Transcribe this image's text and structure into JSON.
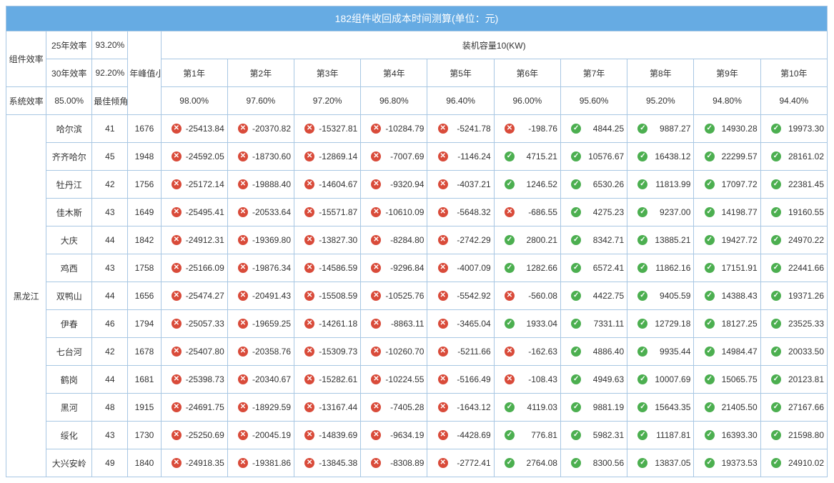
{
  "title": "182组件收回成本时间测算(单位：元)",
  "header": {
    "module_eff": "组件效率",
    "eff25_label": "25年效率",
    "eff25_val": "93.20%",
    "eff30_label": "30年效率",
    "eff30_val": "92.20%",
    "peak_hours_label": "年峰值小时数",
    "capacity_label": "装机容量10(KW)",
    "sys_eff_label": "系统效率",
    "sys_eff_val": "85.00%",
    "tilt_label": "最佳倾角",
    "years": [
      "第1年",
      "第2年",
      "第3年",
      "第4年",
      "第5年",
      "第6年",
      "第7年",
      "第8年",
      "第9年",
      "第10年"
    ],
    "year_pct": [
      "98.00%",
      "97.60%",
      "97.20%",
      "96.80%",
      "96.40%",
      "96.00%",
      "95.60%",
      "95.20%",
      "94.80%",
      "94.40%"
    ]
  },
  "region": "黑龙江",
  "col_widths": {
    "c0": 56,
    "c1": 64,
    "c2": 50,
    "c3": 46,
    "year_col": 93
  },
  "colors": {
    "title_bg": "#66abe3",
    "border": "#a8c7e3",
    "neg_icon": "#d94b3a",
    "pos_icon": "#4caf50"
  },
  "rows": [
    {
      "city": "哈尔滨",
      "tilt": 41,
      "hours": 1676,
      "vals": [
        -25413.84,
        -20370.82,
        -15327.81,
        -10284.79,
        -5241.78,
        -198.76,
        4844.25,
        9887.27,
        14930.28,
        19973.3
      ]
    },
    {
      "city": "齐齐哈尔",
      "tilt": 45,
      "hours": 1948,
      "vals": [
        -24592.05,
        -18730.6,
        -12869.14,
        -7007.69,
        -1146.24,
        4715.21,
        10576.67,
        16438.12,
        22299.57,
        28161.02
      ]
    },
    {
      "city": "牡丹江",
      "tilt": 42,
      "hours": 1756,
      "vals": [
        -25172.14,
        -19888.4,
        -14604.67,
        -9320.94,
        -4037.21,
        1246.52,
        6530.26,
        11813.99,
        17097.72,
        22381.45
      ]
    },
    {
      "city": "佳木斯",
      "tilt": 43,
      "hours": 1649,
      "vals": [
        -25495.41,
        -20533.64,
        -15571.87,
        -10610.09,
        -5648.32,
        -686.55,
        4275.23,
        9237.0,
        14198.77,
        19160.55
      ]
    },
    {
      "city": "大庆",
      "tilt": 44,
      "hours": 1842,
      "vals": [
        -24912.31,
        -19369.8,
        -13827.3,
        -8284.8,
        -2742.29,
        2800.21,
        8342.71,
        13885.21,
        19427.72,
        24970.22
      ]
    },
    {
      "city": "鸡西",
      "tilt": 43,
      "hours": 1758,
      "vals": [
        -25166.09,
        -19876.34,
        -14586.59,
        -9296.84,
        -4007.09,
        1282.66,
        6572.41,
        11862.16,
        17151.91,
        22441.66
      ]
    },
    {
      "city": "双鸭山",
      "tilt": 44,
      "hours": 1656,
      "vals": [
        -25474.27,
        -20491.43,
        -15508.59,
        -10525.76,
        -5542.92,
        -560.08,
        4422.75,
        9405.59,
        14388.43,
        19371.26
      ]
    },
    {
      "city": "伊春",
      "tilt": 46,
      "hours": 1794,
      "vals": [
        -25057.33,
        -19659.25,
        -14261.18,
        -8863.11,
        -3465.04,
        1933.04,
        7331.11,
        12729.18,
        18127.25,
        23525.33
      ]
    },
    {
      "city": "七台河",
      "tilt": 42,
      "hours": 1678,
      "vals": [
        -25407.8,
        -20358.76,
        -15309.73,
        -10260.7,
        -5211.66,
        -162.63,
        4886.4,
        9935.44,
        14984.47,
        20033.5
      ]
    },
    {
      "city": "鹤岗",
      "tilt": 44,
      "hours": 1681,
      "vals": [
        -25398.73,
        -20340.67,
        -15282.61,
        -10224.55,
        -5166.49,
        -108.43,
        4949.63,
        10007.69,
        15065.75,
        20123.81
      ]
    },
    {
      "city": "黑河",
      "tilt": 48,
      "hours": 1915,
      "vals": [
        -24691.75,
        -18929.59,
        -13167.44,
        -7405.28,
        -1643.12,
        4119.03,
        9881.19,
        15643.35,
        21405.5,
        27167.66
      ]
    },
    {
      "city": "绥化",
      "tilt": 43,
      "hours": 1730,
      "vals": [
        -25250.69,
        -20045.19,
        -14839.69,
        -9634.19,
        -4428.69,
        776.81,
        5982.31,
        11187.81,
        16393.3,
        21598.8
      ]
    },
    {
      "city": "大兴安岭",
      "tilt": 49,
      "hours": 1840,
      "vals": [
        -24918.35,
        -19381.86,
        -13845.38,
        -8308.89,
        -2772.41,
        2764.08,
        8300.56,
        13837.05,
        19373.53,
        24910.02
      ]
    }
  ]
}
